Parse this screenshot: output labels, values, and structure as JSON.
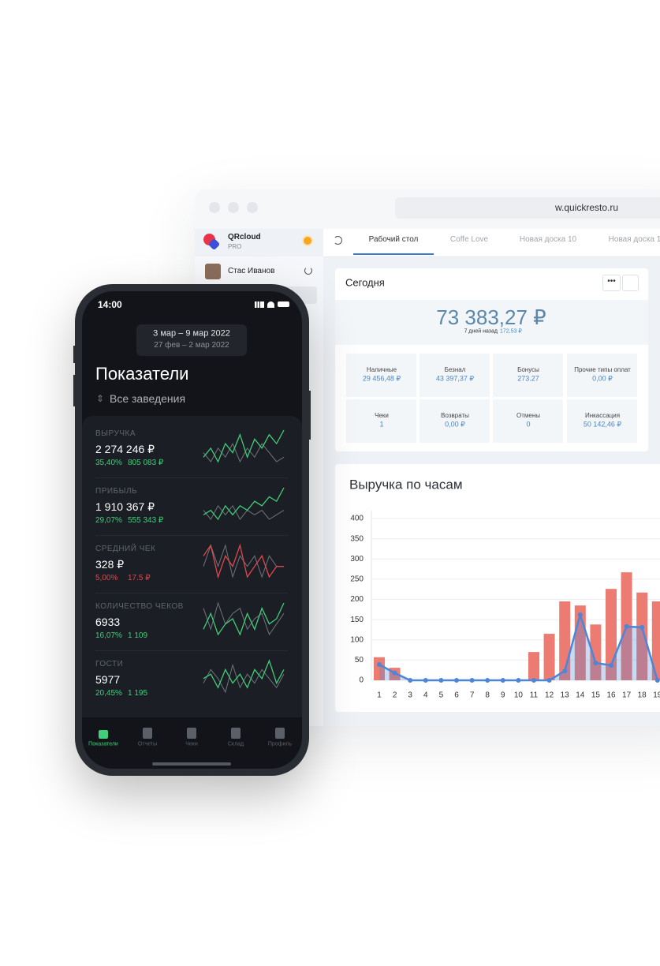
{
  "browser": {
    "url": "w.quickresto.ru"
  },
  "sidebar": {
    "app_name": "QRcloud",
    "plan": "PRO",
    "user": "Стас Иванов"
  },
  "tabs": [
    "Рабочий стол",
    "Coffe Love",
    "Новая доска 10",
    "Новая доска 1"
  ],
  "today": {
    "title": "Сегодня",
    "total": "73 383,27 ₽",
    "compare_label": "7 дней назад",
    "compare_value": "172,53 ₽",
    "cells": [
      {
        "label": "Наличные",
        "value": "29 456,48 ₽"
      },
      {
        "label": "Безнал",
        "value": "43 397,37 ₽"
      },
      {
        "label": "Бонусы",
        "value": "273.27"
      },
      {
        "label": "Прочие типы оплат",
        "value": "0,00 ₽"
      },
      {
        "label": "Чеки",
        "value": "1"
      },
      {
        "label": "Возвраты",
        "value": "0,00 ₽"
      },
      {
        "label": "Отмены",
        "value": "0"
      },
      {
        "label": "Инкассация",
        "value": "50 142,46 ₽"
      }
    ]
  },
  "chart_data": {
    "type": "bar",
    "title": "Выручка по часам",
    "categories": [
      "1",
      "2",
      "3",
      "4",
      "5",
      "6",
      "7",
      "8",
      "9",
      "10",
      "11",
      "12",
      "13",
      "14",
      "15",
      "16",
      "17",
      "18",
      "19"
    ],
    "series": [
      {
        "type": "bar",
        "color": "#ec7b71",
        "values": [
          57,
          31,
          0,
          0,
          0,
          0,
          0,
          0,
          0,
          0,
          70,
          115,
          195,
          185,
          138,
          226,
          267,
          217,
          195
        ]
      },
      {
        "type": "line",
        "color": "#4d86d6",
        "values": [
          39,
          18,
          0,
          0,
          0,
          0,
          0,
          0,
          0,
          0,
          0,
          0,
          23,
          162,
          43,
          37,
          133,
          131,
          0
        ]
      }
    ],
    "ylim": [
      0,
      400
    ],
    "yticks": [
      0,
      50,
      100,
      150,
      200,
      250,
      300,
      350,
      400
    ],
    "grid": true
  },
  "phone": {
    "time": "14:00",
    "period": "3 мар – 9 мар 2022",
    "compare_period": "27 фев – 2 мар 2022",
    "title": "Показатели",
    "venue": "Все заведения",
    "previous_color": "#6f747d",
    "metrics": [
      {
        "label": "ВЫРУЧКА",
        "value": "2 274 246 ₽",
        "change_pct": "35,40%",
        "change_abs": "805 083 ₽",
        "color": "#3ecf78",
        "spark_current": [
          3,
          5,
          2,
          6,
          4,
          8,
          3,
          7,
          5,
          8,
          6,
          9
        ],
        "spark_previous": [
          4,
          2,
          5,
          3,
          6,
          2,
          5,
          3,
          6,
          4,
          2,
          3
        ]
      },
      {
        "label": "ПРИБЫЛЬ",
        "value": "1 910 367  ₽",
        "change_pct": "29,07%",
        "change_abs": "555 343 ₽",
        "color": "#3ecf78",
        "spark_current": [
          3,
          4,
          2,
          5,
          3,
          5,
          4,
          6,
          5,
          7,
          6,
          9
        ],
        "spark_previous": [
          4,
          2,
          5,
          3,
          5,
          2,
          4,
          3,
          4,
          2,
          3,
          4
        ]
      },
      {
        "label": "СРЕДНИЙ ЧЕК",
        "value": "328 ₽",
        "change_pct": "5,00%",
        "change_abs": "17.5 ₽",
        "color": "#e0474c",
        "spark_current": [
          5,
          6,
          3,
          5,
          4,
          6,
          3,
          4,
          5,
          3,
          4,
          4
        ],
        "spark_previous": [
          4,
          6,
          4,
          6,
          3,
          5,
          4,
          5,
          3,
          5,
          4,
          4
        ]
      },
      {
        "label": "КОЛИЧЕСТВО ЧЕКОВ",
        "value": "6933",
        "change_pct": "16,07%",
        "change_abs": "1 109",
        "color": "#3ecf78",
        "spark_current": [
          3,
          6,
          2,
          4,
          5,
          2,
          6,
          3,
          7,
          4,
          5,
          8
        ],
        "spark_previous": [
          7,
          3,
          8,
          4,
          6,
          7,
          3,
          5,
          6,
          2,
          4,
          6
        ]
      },
      {
        "label": "ГОСТИ",
        "value": "5977",
        "change_pct": "20,45%",
        "change_abs": "1 195",
        "color": "#3ecf78",
        "spark_current": [
          5,
          6,
          3,
          7,
          4,
          6,
          3,
          7,
          5,
          9,
          4,
          7
        ],
        "spark_previous": [
          4,
          7,
          5,
          2,
          8,
          3,
          6,
          4,
          7,
          5,
          3,
          6
        ]
      }
    ],
    "nav": [
      "Показатели",
      "Отчеты",
      "Чеки",
      "Склад",
      "Профиль"
    ]
  }
}
